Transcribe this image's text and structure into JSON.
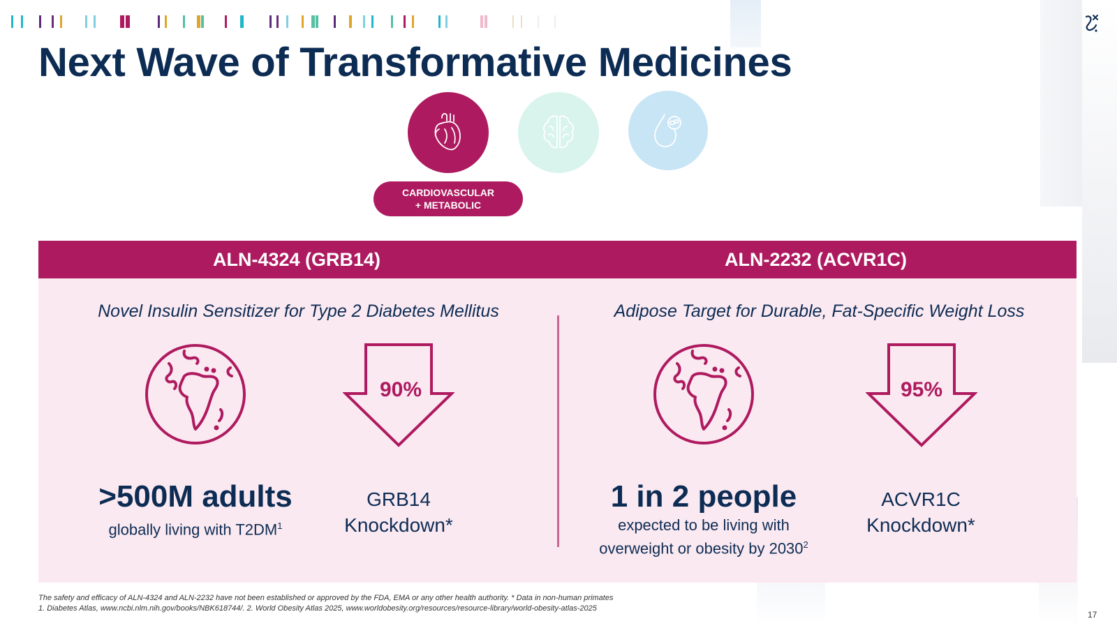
{
  "title": "Next Wave of Transformative Medicines",
  "therapeutic_areas": {
    "active_label": "CARDIOVASCULAR\n+ METABOLIC",
    "icons": [
      {
        "icon": "heart-icon",
        "color": "#ae1a5f"
      },
      {
        "icon": "brain-icon",
        "color": "#d8f4ec"
      },
      {
        "icon": "blood-drop-icon",
        "color": "#c8e5f6"
      }
    ]
  },
  "programs": [
    {
      "name": "ALN-4324 (GRB14)",
      "subtitle": "Novel Insulin Sensitizer for Type 2 Diabetes Mellitus",
      "stat_big": ">500M adults",
      "stat_small": "globally living with T2DM",
      "stat_small_sup": "1",
      "knockdown_pct": "90%",
      "knockdown_label_1": "GRB14",
      "knockdown_label_2": "Knockdown*"
    },
    {
      "name": "ALN-2232 (ACVR1C)",
      "subtitle": "Adipose Target for Durable, Fat-Specific Weight Loss",
      "stat_big": "1 in 2 people",
      "stat_small_1": "expected to be living with",
      "stat_small_2": "overweight or obesity by 2030",
      "stat_small_sup": "2",
      "knockdown_pct": "95%",
      "knockdown_label_1": "ACVR1C",
      "knockdown_label_2": "Knockdown*"
    }
  ],
  "footnotes": {
    "line1": "The safety and efficacy of ALN-4324 and ALN-2232 have not been established or approved by the FDA, EMA or any other health authority.   * Data in non-human primates",
    "line2": "1. Diabetes Atlas, www.ncbi.nlm.nih.gov/books/NBK618744/.   2. World Obesity Atlas 2025, www.worldobesity.org/resources/resource-library/world-obesity-atlas-2025"
  },
  "page_number": "17",
  "colors": {
    "navy": "#0d2c54",
    "magenta": "#ae1a5f",
    "panel_pink": "#fbe9f1"
  }
}
